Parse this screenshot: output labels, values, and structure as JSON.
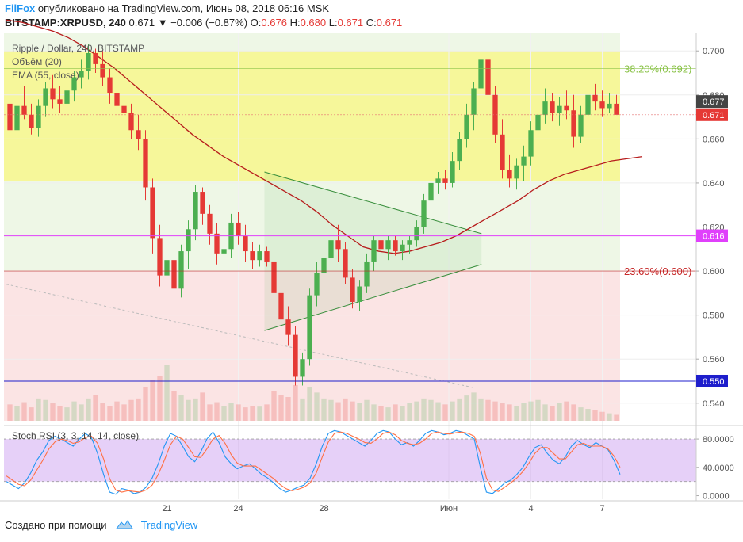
{
  "header": {
    "brand": "FilFox",
    "published": "опубликовано на TradingView.com, Июнь 08, 2018 06:16 MSK",
    "symbol": "BITSTAMP:XRPUSD, 240",
    "last": "0.671",
    "change": "▼ −0.006 (−0.87%)",
    "o_label": "O:",
    "o_value": "0.676",
    "h_label": "H:",
    "h_value": "0.680",
    "l_label": "L:",
    "l_value": "0.671",
    "c_label": "C:",
    "c_value": "0.671"
  },
  "legend": {
    "title": "Ripple / Dollar, 240, BITSTAMP",
    "volume": "Объём (20)",
    "ema": "EMA (55, close)"
  },
  "stoch_legend": "Stoch RSI (3, 3, 14, 14, close)",
  "footer": {
    "made_with": "Создано при помощи",
    "brand": "TradingView"
  },
  "colors": {
    "up": "#4caf50",
    "down": "#e53935",
    "ema": "#b71c1c",
    "accent": "#2196f3"
  },
  "chart_data": [
    {
      "type": "candlestick",
      "title": "Ripple / Dollar, 240, BITSTAMP",
      "y_ticks": [
        "0.700",
        "0.680",
        "0.660",
        "0.640",
        "0.620",
        "0.600",
        "0.580",
        "0.560",
        "0.540"
      ],
      "ylim": [
        0.532,
        0.708
      ],
      "x_ticks": [
        "21",
        "24",
        "28",
        "Июн",
        "4",
        "7"
      ],
      "price_labels": [
        {
          "value": 0.677,
          "text": "0.677",
          "color": "#444444"
        },
        {
          "value": 0.671,
          "text": "0.671",
          "color": "#e53935"
        },
        {
          "value": 0.616,
          "text": "0.616",
          "color": "#e040fb"
        },
        {
          "value": 0.55,
          "text": "0.550",
          "color": "#1e1ecc"
        }
      ],
      "fib_levels": [
        {
          "value": 0.692,
          "label": "38.20%(0.692)",
          "color": "#8bc34a"
        },
        {
          "value": 0.6,
          "label": "23.60%(0.600)",
          "color": "#c62828"
        }
      ],
      "zones": [
        {
          "from": 0.7,
          "to": 0.641,
          "color": "#f6f79a"
        },
        {
          "from": 0.641,
          "to": 0.6,
          "color": "#eef7e6"
        },
        {
          "from": 0.6,
          "to": 0.532,
          "color": "#fbe4e4"
        }
      ],
      "horizontal_lines": [
        {
          "value": 0.616,
          "color": "#e040fb"
        },
        {
          "value": 0.55,
          "color": "#1e1ecc"
        }
      ],
      "candles": [
        [
          0.676,
          0.679,
          0.661,
          0.664
        ],
        [
          0.664,
          0.677,
          0.659,
          0.675
        ],
        [
          0.675,
          0.684,
          0.669,
          0.671
        ],
        [
          0.671,
          0.676,
          0.662,
          0.665
        ],
        [
          0.665,
          0.678,
          0.661,
          0.675
        ],
        [
          0.675,
          0.686,
          0.67,
          0.683
        ],
        [
          0.683,
          0.689,
          0.674,
          0.678
        ],
        [
          0.678,
          0.684,
          0.672,
          0.676
        ],
        [
          0.676,
          0.685,
          0.671,
          0.682
        ],
        [
          0.682,
          0.691,
          0.677,
          0.688
        ],
        [
          0.688,
          0.696,
          0.683,
          0.691
        ],
        [
          0.691,
          0.703,
          0.687,
          0.699
        ],
        [
          0.699,
          0.701,
          0.69,
          0.694
        ],
        [
          0.694,
          0.7,
          0.684,
          0.688
        ],
        [
          0.688,
          0.692,
          0.676,
          0.681
        ],
        [
          0.681,
          0.687,
          0.672,
          0.675
        ],
        [
          0.675,
          0.681,
          0.667,
          0.672
        ],
        [
          0.672,
          0.676,
          0.66,
          0.664
        ],
        [
          0.664,
          0.671,
          0.655,
          0.66
        ],
        [
          0.66,
          0.664,
          0.632,
          0.638
        ],
        [
          0.638,
          0.642,
          0.608,
          0.615
        ],
        [
          0.615,
          0.621,
          0.593,
          0.598
        ],
        [
          0.598,
          0.611,
          0.578,
          0.605
        ],
        [
          0.605,
          0.615,
          0.586,
          0.592
        ],
        [
          0.592,
          0.612,
          0.588,
          0.609
        ],
        [
          0.609,
          0.623,
          0.601,
          0.619
        ],
        [
          0.619,
          0.639,
          0.614,
          0.636
        ],
        [
          0.636,
          0.638,
          0.621,
          0.626
        ],
        [
          0.626,
          0.63,
          0.612,
          0.617
        ],
        [
          0.617,
          0.622,
          0.603,
          0.608
        ],
        [
          0.608,
          0.614,
          0.601,
          0.61
        ],
        [
          0.61,
          0.626,
          0.606,
          0.622
        ],
        [
          0.622,
          0.627,
          0.612,
          0.616
        ],
        [
          0.616,
          0.621,
          0.604,
          0.609
        ],
        [
          0.609,
          0.613,
          0.601,
          0.605
        ],
        [
          0.605,
          0.612,
          0.602,
          0.609
        ],
        [
          0.609,
          0.611,
          0.602,
          0.604
        ],
        [
          0.604,
          0.606,
          0.585,
          0.59
        ],
        [
          0.59,
          0.594,
          0.573,
          0.578
        ],
        [
          0.578,
          0.584,
          0.566,
          0.571
        ],
        [
          0.571,
          0.575,
          0.548,
          0.552
        ],
        [
          0.552,
          0.563,
          0.548,
          0.56
        ],
        [
          0.56,
          0.592,
          0.557,
          0.589
        ],
        [
          0.589,
          0.604,
          0.584,
          0.599
        ],
        [
          0.599,
          0.611,
          0.593,
          0.606
        ],
        [
          0.606,
          0.619,
          0.601,
          0.614
        ],
        [
          0.614,
          0.621,
          0.604,
          0.61
        ],
        [
          0.61,
          0.613,
          0.594,
          0.597
        ],
        [
          0.597,
          0.601,
          0.583,
          0.586
        ],
        [
          0.586,
          0.596,
          0.582,
          0.593
        ],
        [
          0.593,
          0.608,
          0.59,
          0.604
        ],
        [
          0.604,
          0.616,
          0.6,
          0.614
        ],
        [
          0.614,
          0.619,
          0.606,
          0.61
        ],
        [
          0.61,
          0.616,
          0.605,
          0.614
        ],
        [
          0.614,
          0.616,
          0.607,
          0.609
        ],
        [
          0.609,
          0.614,
          0.605,
          0.612
        ],
        [
          0.612,
          0.616,
          0.608,
          0.614
        ],
        [
          0.614,
          0.623,
          0.611,
          0.62
        ],
        [
          0.62,
          0.635,
          0.617,
          0.632
        ],
        [
          0.632,
          0.643,
          0.627,
          0.64
        ],
        [
          0.64,
          0.645,
          0.635,
          0.642
        ],
        [
          0.642,
          0.646,
          0.637,
          0.64
        ],
        [
          0.64,
          0.654,
          0.638,
          0.65
        ],
        [
          0.65,
          0.663,
          0.646,
          0.66
        ],
        [
          0.66,
          0.676,
          0.656,
          0.671
        ],
        [
          0.671,
          0.686,
          0.664,
          0.683
        ],
        [
          0.683,
          0.703,
          0.679,
          0.696
        ],
        [
          0.696,
          0.699,
          0.676,
          0.68
        ],
        [
          0.68,
          0.684,
          0.658,
          0.662
        ],
        [
          0.662,
          0.669,
          0.642,
          0.646
        ],
        [
          0.646,
          0.653,
          0.638,
          0.642
        ],
        [
          0.642,
          0.651,
          0.637,
          0.648
        ],
        [
          0.648,
          0.657,
          0.641,
          0.652
        ],
        [
          0.652,
          0.668,
          0.648,
          0.664
        ],
        [
          0.664,
          0.675,
          0.66,
          0.671
        ],
        [
          0.671,
          0.683,
          0.667,
          0.677
        ],
        [
          0.677,
          0.681,
          0.668,
          0.672
        ],
        [
          0.672,
          0.679,
          0.666,
          0.675
        ],
        [
          0.675,
          0.682,
          0.669,
          0.673
        ],
        [
          0.673,
          0.68,
          0.656,
          0.661
        ],
        [
          0.661,
          0.675,
          0.658,
          0.671
        ],
        [
          0.671,
          0.683,
          0.668,
          0.68
        ],
        [
          0.68,
          0.685,
          0.673,
          0.677
        ],
        [
          0.677,
          0.682,
          0.67,
          0.674
        ],
        [
          0.674,
          0.681,
          0.672,
          0.676
        ],
        [
          0.676,
          0.68,
          0.671,
          0.671
        ]
      ],
      "ema_55": [
        0.714,
        0.713,
        0.711,
        0.709,
        0.706,
        0.702,
        0.697,
        0.692,
        0.686,
        0.68,
        0.674,
        0.668,
        0.662,
        0.657,
        0.652,
        0.648,
        0.644,
        0.64,
        0.636,
        0.632,
        0.627,
        0.621,
        0.616,
        0.611,
        0.609,
        0.608,
        0.609,
        0.611,
        0.613,
        0.616,
        0.62,
        0.624,
        0.628,
        0.632,
        0.637,
        0.641,
        0.644,
        0.646,
        0.648,
        0.65,
        0.651,
        0.652
      ],
      "volume": [
        22,
        20,
        25,
        18,
        30,
        28,
        24,
        20,
        18,
        26,
        22,
        30,
        35,
        24,
        20,
        26,
        22,
        28,
        30,
        45,
        55,
        60,
        75,
        40,
        35,
        28,
        30,
        38,
        22,
        25,
        20,
        24,
        22,
        18,
        20,
        19,
        22,
        40,
        35,
        32,
        48,
        30,
        45,
        38,
        30,
        28,
        25,
        30,
        26,
        24,
        28,
        22,
        20,
        18,
        22,
        20,
        24,
        26,
        30,
        28,
        25,
        22,
        26,
        30,
        34,
        38,
        30,
        28,
        26,
        24,
        22,
        20,
        24,
        26,
        28,
        22,
        20,
        24,
        26,
        22,
        18,
        16,
        14,
        12,
        10,
        8
      ],
      "triangle": [
        [
          1.605,
          0.645
        ],
        [
          2.955,
          0.617
        ],
        [
          1.605,
          0.573
        ],
        [
          2.955,
          0.603
        ]
      ],
      "dotted_trend": [
        [
          0,
          0.594
        ],
        [
          1.905,
          0.547
        ]
      ]
    },
    {
      "type": "line",
      "title": "Stoch RSI (3, 3, 14, 14, close)",
      "y_ticks": [
        "80.0000",
        "40.0000",
        "0.0000"
      ],
      "ylim": [
        -5,
        98
      ],
      "band": [
        20,
        80
      ],
      "series": [
        {
          "color": "#2196f3",
          "values": [
            20,
            15,
            10,
            18,
            32,
            50,
            62,
            78,
            84,
            80,
            75,
            70,
            80,
            88,
            82,
            60,
            30,
            5,
            2,
            10,
            8,
            3,
            5,
            12,
            25,
            45,
            70,
            88,
            84,
            70,
            55,
            48,
            62,
            80,
            90,
            75,
            55,
            45,
            38,
            42,
            45,
            38,
            30,
            25,
            18,
            10,
            5,
            8,
            12,
            15,
            25,
            45,
            70,
            88,
            92,
            90,
            85,
            80,
            75,
            70,
            78,
            88,
            92,
            90,
            80,
            72,
            75,
            70,
            78,
            88,
            92,
            90,
            86,
            88,
            92,
            90,
            85,
            80,
            40,
            5,
            3,
            10,
            18,
            22,
            30,
            40,
            55,
            68,
            72,
            60,
            50,
            45,
            55,
            70,
            78,
            72,
            68,
            75,
            70,
            65,
            50,
            30
          ]
        },
        {
          "color": "#ff7043",
          "values": [
            28,
            22,
            16,
            14,
            22,
            36,
            50,
            66,
            76,
            80,
            78,
            74,
            76,
            82,
            84,
            74,
            52,
            24,
            8,
            5,
            7,
            6,
            5,
            8,
            15,
            30,
            50,
            72,
            84,
            80,
            68,
            55,
            54,
            66,
            80,
            85,
            74,
            58,
            46,
            42,
            42,
            42,
            36,
            30,
            24,
            16,
            10,
            7,
            9,
            12,
            18,
            32,
            55,
            76,
            88,
            90,
            88,
            84,
            80,
            75,
            74,
            80,
            88,
            90,
            86,
            78,
            74,
            72,
            74,
            80,
            88,
            90,
            88,
            87,
            89,
            90,
            88,
            84,
            60,
            25,
            8,
            6,
            12,
            18,
            25,
            34,
            46,
            60,
            68,
            68,
            60,
            52,
            52,
            62,
            72,
            74,
            70,
            70,
            70,
            66,
            56,
            40
          ]
        }
      ]
    }
  ]
}
